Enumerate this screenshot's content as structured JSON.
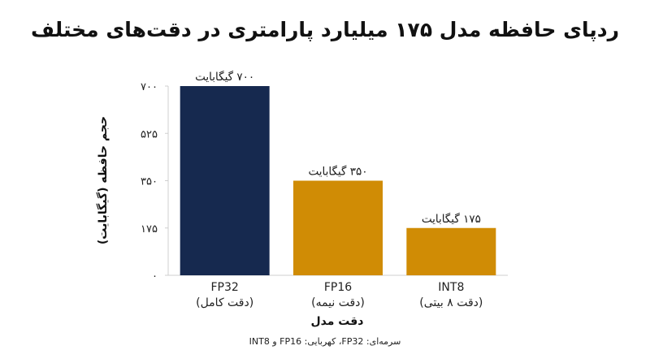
{
  "chart_data": {
    "type": "bar",
    "title": "ردپای حافظه مدل ۱۷۵ میلیارد پارامتری در دقت‌های مختلف",
    "xlabel": "دقت مدل",
    "ylabel": "حجم حافظه (گیگابایت)",
    "ylim": [
      0,
      700
    ],
    "yticks": [
      0,
      175,
      350,
      525,
      700
    ],
    "ytick_labels": [
      "۰",
      "۱۷۵",
      "۳۵۰",
      "۵۲۵",
      "۷۰۰"
    ],
    "grid": false,
    "categories": [
      "FP32",
      "FP16",
      "INT8"
    ],
    "category_sublabels": [
      "(دقت کامل)",
      "(دقت نیمه)",
      "(دقت ۸ بیتی)"
    ],
    "values": [
      700,
      350,
      175
    ],
    "data_labels": [
      "۷۰۰ گیگابایت",
      "۳۵۰ گیگابایت",
      "۱۷۵ گیگابایت"
    ],
    "colors": [
      "#16294f",
      "#d08c05",
      "#d08c05"
    ],
    "note": "سرمه‌ای: FP32، کهربایی: FP16 و INT8"
  }
}
